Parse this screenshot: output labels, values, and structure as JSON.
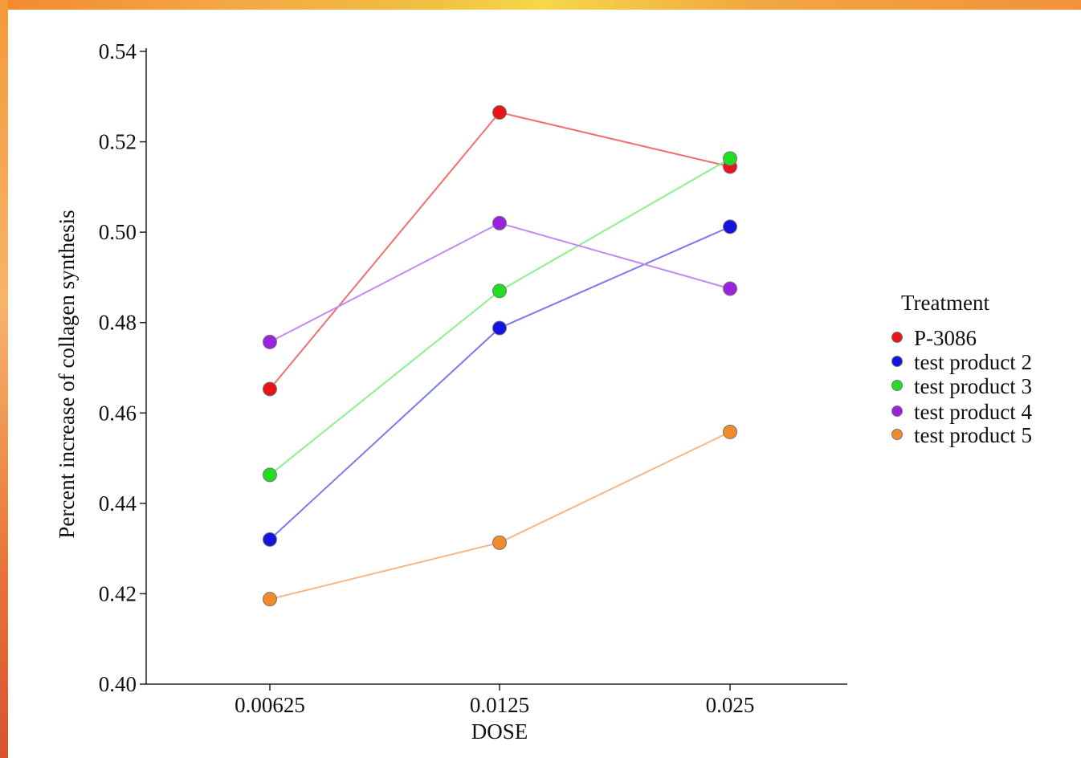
{
  "chart_data": {
    "type": "line",
    "title": "",
    "xlabel": "DOSE",
    "ylabel": "Percent increase of collagen synthesis",
    "categories": [
      "0.00625",
      "0.0125",
      "0.025"
    ],
    "ylim": [
      0.4,
      0.54
    ],
    "yticks": [
      "0.40",
      "0.42",
      "0.44",
      "0.46",
      "0.48",
      "0.50",
      "0.52",
      "0.54"
    ],
    "grid": false,
    "legend": {
      "title": "Treatment",
      "placement": "right"
    },
    "series": [
      {
        "name": "P-3086",
        "values": [
          0.4653,
          0.5265,
          0.5145
        ],
        "color": "#e8141a",
        "line_color": "#f07070"
      },
      {
        "name": "test product 2",
        "values": [
          0.432,
          0.4788,
          0.5012
        ],
        "color": "#1414e0",
        "line_color": "#7a7af0"
      },
      {
        "name": "test product 3",
        "values": [
          0.4463,
          0.487,
          0.5163
        ],
        "color": "#22dd22",
        "line_color": "#8af08a"
      },
      {
        "name": "test product 4",
        "values": [
          0.4757,
          0.502,
          0.4875
        ],
        "color": "#9a22dd",
        "line_color": "#c38af0"
      },
      {
        "name": "test product 5",
        "values": [
          0.4188,
          0.4313,
          0.4558
        ],
        "color": "#f08a2a",
        "line_color": "#f5b585"
      }
    ]
  }
}
